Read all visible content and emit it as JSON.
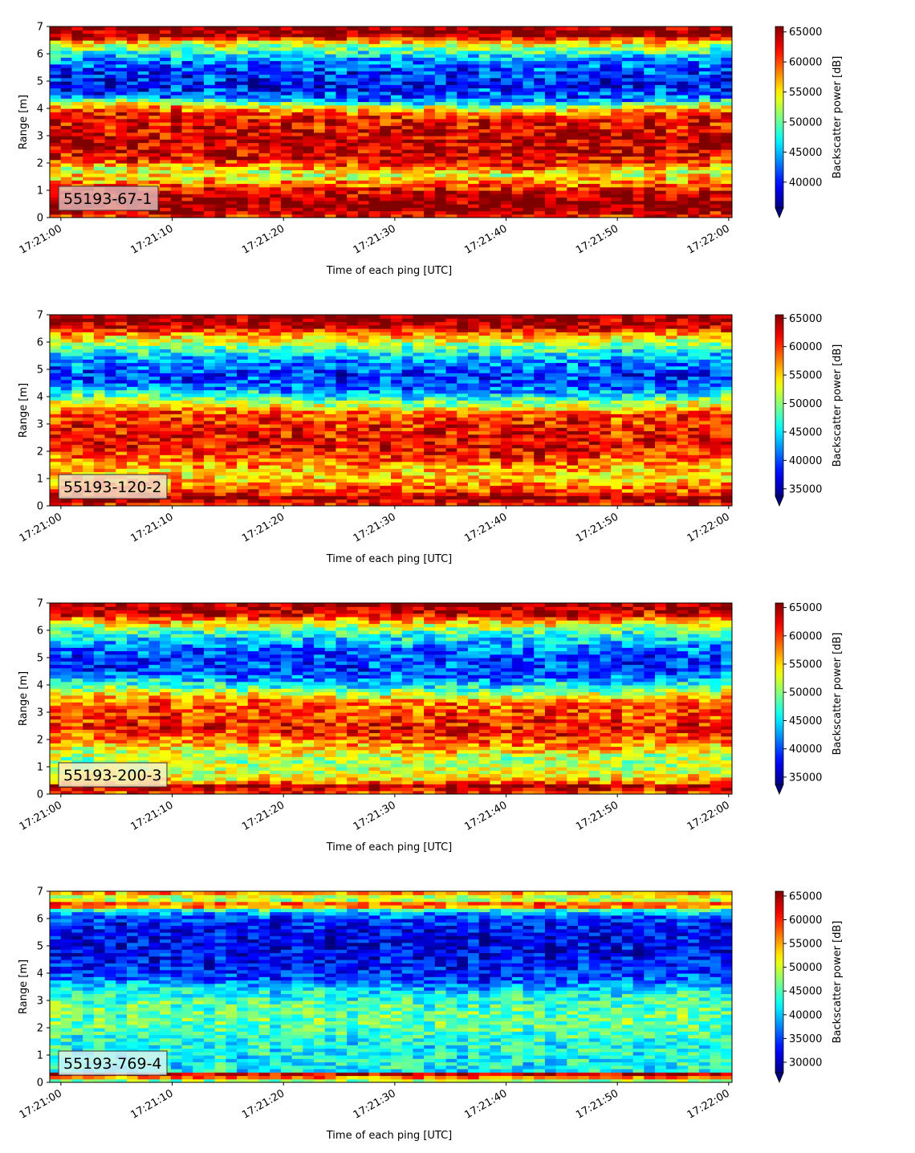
{
  "chart_data": [
    {
      "type": "heatmap",
      "label": "55193-67-1",
      "xlabel": "Time of each ping [UTC]",
      "ylabel": "Range [m]",
      "colorbar_label": "Backscatter power [dB]",
      "x_ticks": [
        "17:21:00",
        "17:21:10",
        "17:21:20",
        "17:21:30",
        "17:21:40",
        "17:21:50",
        "17:22:00"
      ],
      "y_ticks": [
        0,
        1,
        2,
        3,
        4,
        5,
        6,
        7
      ],
      "x_range_seconds": [
        -1,
        60.3
      ],
      "ylim": [
        0,
        7
      ],
      "colorbar_ticks": [
        40000,
        45000,
        50000,
        55000,
        60000,
        65000
      ],
      "vmin": 35700,
      "vmax": 65900,
      "label_box_color": "#dfb4b4",
      "profile": [
        {
          "range": 0.1,
          "value": 62000
        },
        {
          "range": 0.25,
          "value": 66000
        },
        {
          "range": 0.6,
          "value": 66000
        },
        {
          "range": 0.9,
          "value": 64000
        },
        {
          "range": 1.3,
          "value": 58000
        },
        {
          "range": 1.6,
          "value": 53000
        },
        {
          "range": 2.0,
          "value": 62000
        },
        {
          "range": 2.6,
          "value": 64000
        },
        {
          "range": 3.2,
          "value": 63000
        },
        {
          "range": 3.7,
          "value": 62000
        },
        {
          "range": 4.0,
          "value": 56000
        },
        {
          "range": 4.3,
          "value": 44000
        },
        {
          "range": 4.8,
          "value": 40000
        },
        {
          "range": 5.3,
          "value": 41000
        },
        {
          "range": 5.8,
          "value": 44000
        },
        {
          "range": 6.1,
          "value": 49000
        },
        {
          "range": 6.4,
          "value": 55000
        },
        {
          "range": 6.65,
          "value": 64000
        },
        {
          "range": 7.0,
          "value": 66000
        }
      ]
    },
    {
      "type": "heatmap",
      "label": "55193-120-2",
      "xlabel": "Time of each ping [UTC]",
      "ylabel": "Range [m]",
      "colorbar_label": "Backscatter power [dB]",
      "x_ticks": [
        "17:21:00",
        "17:21:10",
        "17:21:20",
        "17:21:30",
        "17:21:40",
        "17:21:50",
        "17:22:00"
      ],
      "y_ticks": [
        0,
        1,
        2,
        3,
        4,
        5,
        6,
        7
      ],
      "x_range_seconds": [
        -1,
        60.3
      ],
      "ylim": [
        0,
        7
      ],
      "colorbar_ticks": [
        35000,
        40000,
        45000,
        50000,
        55000,
        60000,
        65000
      ],
      "vmin": 33700,
      "vmax": 65600,
      "label_box_color": "#f2dcc8",
      "profile": [
        {
          "range": 0.1,
          "value": 61000
        },
        {
          "range": 0.3,
          "value": 65500
        },
        {
          "range": 0.5,
          "value": 60000
        },
        {
          "range": 0.9,
          "value": 56000
        },
        {
          "range": 1.3,
          "value": 55000
        },
        {
          "range": 1.7,
          "value": 59000
        },
        {
          "range": 2.2,
          "value": 62000
        },
        {
          "range": 2.8,
          "value": 61000
        },
        {
          "range": 3.3,
          "value": 60000
        },
        {
          "range": 3.8,
          "value": 50000
        },
        {
          "range": 4.3,
          "value": 41000
        },
        {
          "range": 4.8,
          "value": 39000
        },
        {
          "range": 5.3,
          "value": 42000
        },
        {
          "range": 5.8,
          "value": 48000
        },
        {
          "range": 6.2,
          "value": 55000
        },
        {
          "range": 6.6,
          "value": 64000
        },
        {
          "range": 7.0,
          "value": 65500
        }
      ]
    },
    {
      "type": "heatmap",
      "label": "55193-200-3",
      "xlabel": "Time of each ping [UTC]",
      "ylabel": "Range [m]",
      "colorbar_label": "Backscatter power [dB]",
      "x_ticks": [
        "17:21:00",
        "17:21:10",
        "17:21:20",
        "17:21:30",
        "17:21:40",
        "17:21:50",
        "17:22:00"
      ],
      "y_ticks": [
        0,
        1,
        2,
        3,
        4,
        5,
        6,
        7
      ],
      "x_range_seconds": [
        -1,
        60.3
      ],
      "ylim": [
        0,
        7
      ],
      "colorbar_ticks": [
        35000,
        40000,
        45000,
        50000,
        55000,
        60000,
        65000
      ],
      "vmin": 33700,
      "vmax": 65800,
      "label_box_color": "#f8f0c4",
      "profile": [
        {
          "range": 0.1,
          "value": 60000
        },
        {
          "range": 0.3,
          "value": 65500
        },
        {
          "range": 0.5,
          "value": 55000
        },
        {
          "range": 0.9,
          "value": 52000
        },
        {
          "range": 1.3,
          "value": 51000
        },
        {
          "range": 1.8,
          "value": 57000
        },
        {
          "range": 2.3,
          "value": 61000
        },
        {
          "range": 2.9,
          "value": 60000
        },
        {
          "range": 3.4,
          "value": 58000
        },
        {
          "range": 3.9,
          "value": 47000
        },
        {
          "range": 4.4,
          "value": 40000
        },
        {
          "range": 4.9,
          "value": 39000
        },
        {
          "range": 5.4,
          "value": 42000
        },
        {
          "range": 5.9,
          "value": 47000
        },
        {
          "range": 6.3,
          "value": 55000
        },
        {
          "range": 6.6,
          "value": 63000
        },
        {
          "range": 7.0,
          "value": 65500
        }
      ]
    },
    {
      "type": "heatmap",
      "label": "55193-769-4",
      "xlabel": "Time of each ping [UTC]",
      "ylabel": "Range [m]",
      "colorbar_label": "Backscatter power [dB]",
      "x_ticks": [
        "17:21:00",
        "17:21:10",
        "17:21:20",
        "17:21:30",
        "17:21:40",
        "17:21:50",
        "17:22:00"
      ],
      "y_ticks": [
        0,
        1,
        2,
        3,
        4,
        5,
        6,
        7
      ],
      "x_range_seconds": [
        -1,
        60.3
      ],
      "ylim": [
        0,
        7
      ],
      "colorbar_ticks": [
        30000,
        35000,
        40000,
        45000,
        50000,
        55000,
        60000,
        65000
      ],
      "vmin": 27800,
      "vmax": 66000,
      "label_box_color": "#d6f2f2",
      "profile": [
        {
          "range": 0.1,
          "value": 48000
        },
        {
          "range": 0.22,
          "value": 60000
        },
        {
          "range": 0.3,
          "value": 66000
        },
        {
          "range": 0.4,
          "value": 42000
        },
        {
          "range": 0.9,
          "value": 42000
        },
        {
          "range": 1.5,
          "value": 43000
        },
        {
          "range": 2.2,
          "value": 46000
        },
        {
          "range": 2.8,
          "value": 45000
        },
        {
          "range": 3.3,
          "value": 42000
        },
        {
          "range": 3.7,
          "value": 36000
        },
        {
          "range": 4.2,
          "value": 33000
        },
        {
          "range": 4.8,
          "value": 32000
        },
        {
          "range": 5.4,
          "value": 32000
        },
        {
          "range": 6.0,
          "value": 34000
        },
        {
          "range": 6.3,
          "value": 42000
        },
        {
          "range": 6.5,
          "value": 62000
        },
        {
          "range": 6.7,
          "value": 48000
        },
        {
          "range": 6.9,
          "value": 52000
        },
        {
          "range": 7.0,
          "value": 60000
        }
      ]
    }
  ]
}
